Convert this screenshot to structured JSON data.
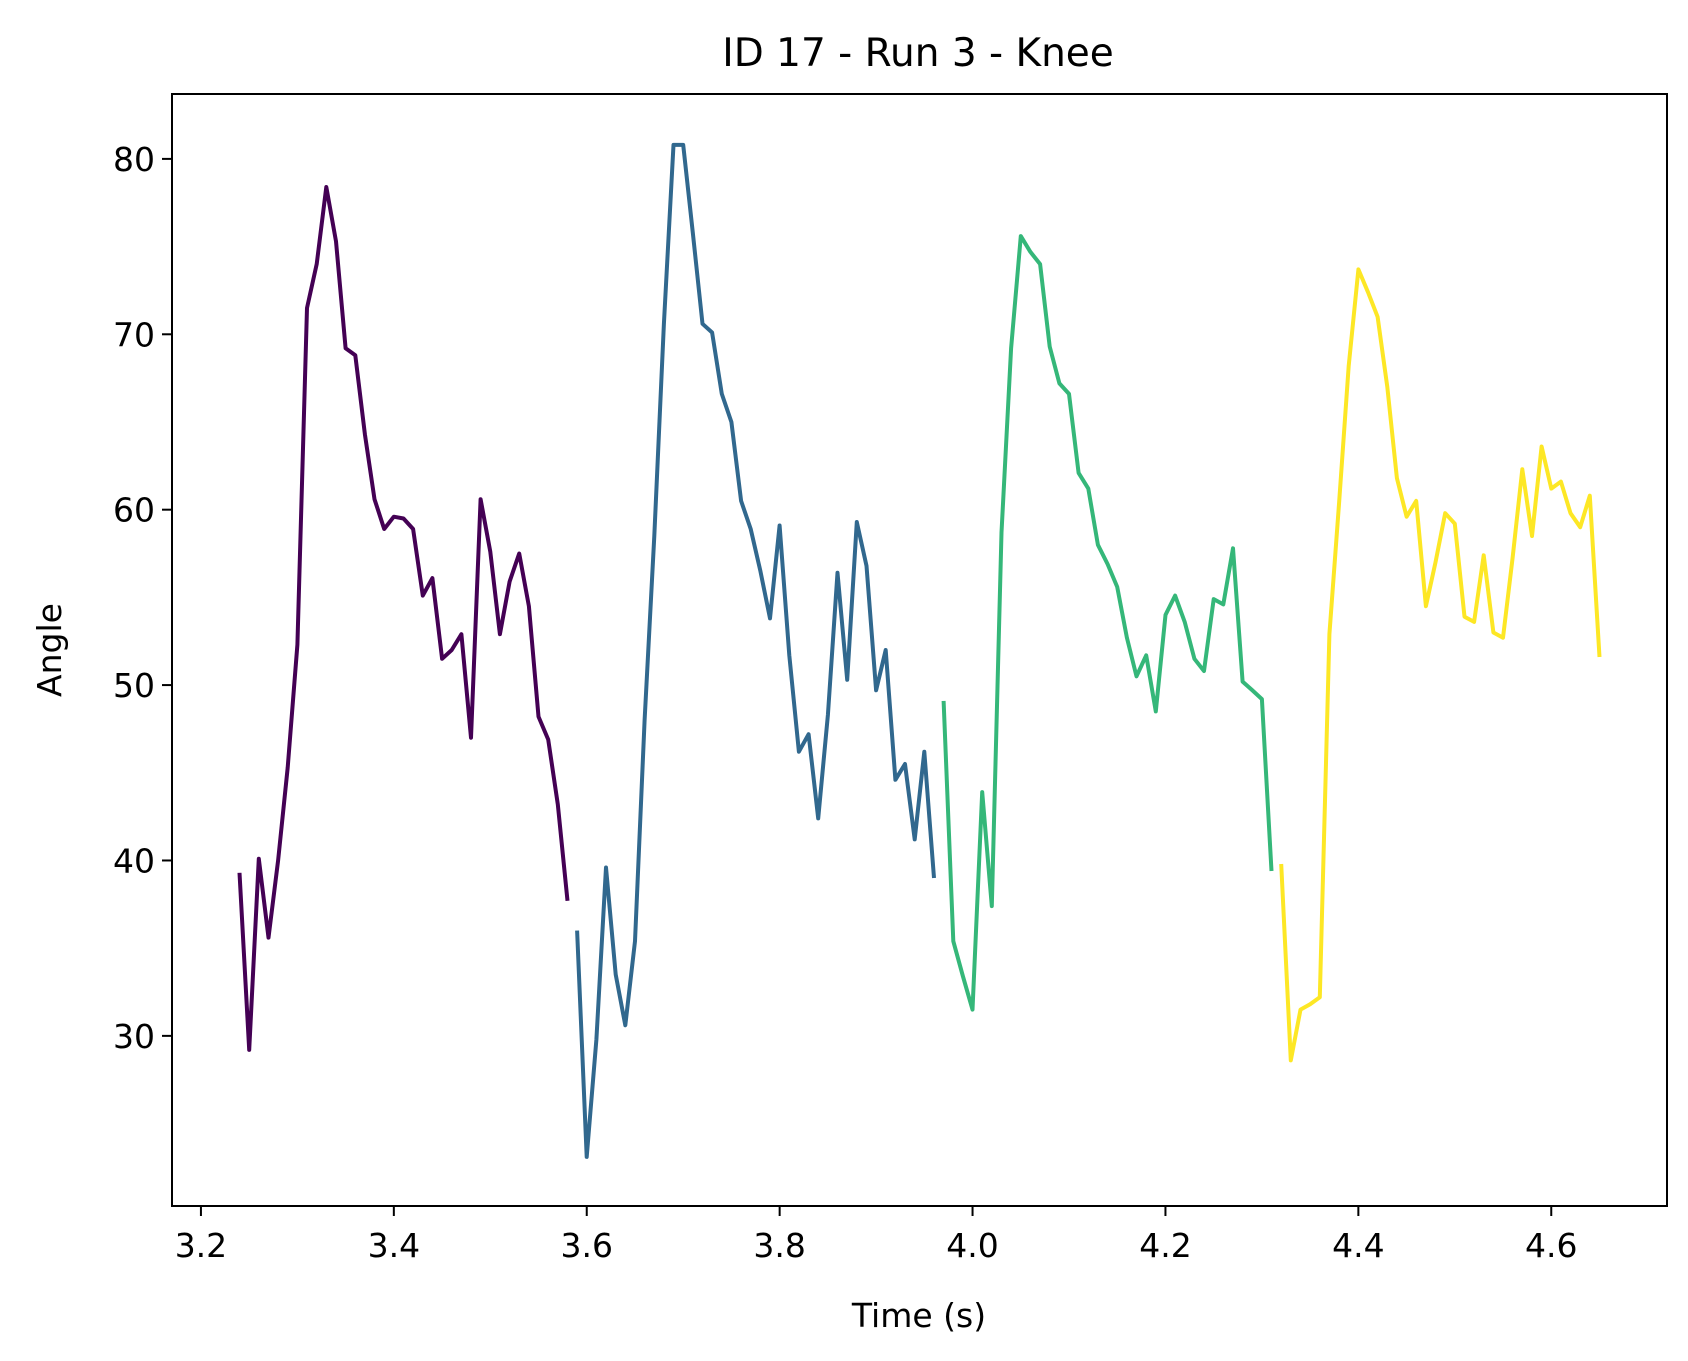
{
  "chart_data": {
    "type": "line",
    "title": "ID 17 - Run 3 - Knee",
    "xlabel": "Time (s)",
    "ylabel": "Angle",
    "xlim": [
      3.17,
      4.72
    ],
    "ylim": [
      20.3,
      83.7
    ],
    "xticks": [
      3.2,
      3.4,
      3.6,
      3.8,
      4.0,
      4.2,
      4.4,
      4.6
    ],
    "xtick_labels": [
      "3.2",
      "3.4",
      "3.6",
      "3.8",
      "4.0",
      "4.2",
      "4.4",
      "4.6"
    ],
    "yticks": [
      30,
      40,
      50,
      60,
      70,
      80
    ],
    "ytick_labels": [
      "30",
      "40",
      "50",
      "60",
      "70",
      "80"
    ],
    "grid": false,
    "legend": "none",
    "series": [
      {
        "color": "#440154",
        "x": [
          3.24,
          3.25,
          3.26,
          3.27,
          3.28,
          3.29,
          3.3,
          3.31,
          3.32,
          3.33,
          3.34,
          3.35,
          3.36,
          3.37,
          3.38,
          3.39,
          3.4,
          3.41,
          3.42,
          3.43,
          3.44,
          3.45,
          3.46,
          3.47,
          3.48,
          3.49,
          3.5,
          3.51,
          3.52,
          3.53,
          3.54,
          3.55,
          3.56,
          3.57,
          3.58
        ],
        "y": [
          39.3,
          29.2,
          40.1,
          35.6,
          40.0,
          45.3,
          52.3,
          71.5,
          74.0,
          78.4,
          75.3,
          69.2,
          68.8,
          64.3,
          60.6,
          58.9,
          59.6,
          59.5,
          58.9,
          55.1,
          56.1,
          51.5,
          52.0,
          52.9,
          47.0,
          60.6,
          57.6,
          52.9,
          55.9,
          57.5,
          54.5,
          48.2,
          46.9,
          43.2,
          37.7
        ]
      },
      {
        "color": "#31688e",
        "x": [
          3.59,
          3.6,
          3.61,
          3.62,
          3.63,
          3.64,
          3.65,
          3.66,
          3.67,
          3.68,
          3.69,
          3.7,
          3.71,
          3.72,
          3.73,
          3.74,
          3.75,
          3.76,
          3.77,
          3.78,
          3.79,
          3.8,
          3.81,
          3.82,
          3.83,
          3.84,
          3.85,
          3.86,
          3.87,
          3.88,
          3.89,
          3.9,
          3.91,
          3.92,
          3.93,
          3.94,
          3.95,
          3.96
        ],
        "y": [
          36.0,
          23.1,
          29.8,
          39.6,
          33.5,
          30.6,
          35.4,
          48.0,
          58.5,
          70.6,
          80.8,
          80.8,
          75.8,
          70.6,
          70.1,
          66.6,
          65.0,
          60.5,
          58.9,
          56.5,
          53.8,
          59.1,
          51.7,
          46.2,
          47.2,
          42.4,
          48.3,
          56.4,
          50.3,
          59.3,
          56.8,
          49.7,
          52.0,
          44.6,
          45.5,
          41.2,
          46.2,
          39.0
        ]
      },
      {
        "color": "#35b779",
        "x": [
          3.97,
          3.98,
          3.99,
          4.0,
          4.01,
          4.02,
          4.03,
          4.04,
          4.05,
          4.06,
          4.07,
          4.08,
          4.09,
          4.1,
          4.11,
          4.12,
          4.13,
          4.14,
          4.15,
          4.16,
          4.17,
          4.18,
          4.19,
          4.2,
          4.21,
          4.22,
          4.23,
          4.24,
          4.25,
          4.26,
          4.27,
          4.28,
          4.29,
          4.3,
          4.31
        ],
        "y": [
          49.1,
          35.4,
          33.4,
          31.5,
          43.9,
          37.4,
          58.7,
          69.2,
          75.6,
          74.7,
          74.0,
          69.3,
          67.2,
          66.6,
          62.1,
          61.2,
          58.0,
          56.9,
          55.6,
          52.7,
          50.5,
          51.7,
          48.5,
          54.0,
          55.1,
          53.6,
          51.5,
          50.8,
          54.9,
          54.6,
          57.8,
          50.2,
          49.7,
          49.2,
          39.4
        ]
      },
      {
        "color": "#fde725",
        "x": [
          4.32,
          4.33,
          4.34,
          4.35,
          4.36,
          4.37,
          4.38,
          4.39,
          4.4,
          4.41,
          4.42,
          4.43,
          4.44,
          4.45,
          4.46,
          4.47,
          4.48,
          4.49,
          4.5,
          4.51,
          4.52,
          4.53,
          4.54,
          4.55,
          4.56,
          4.57,
          4.58,
          4.59,
          4.6,
          4.61,
          4.62,
          4.63,
          4.64,
          4.65
        ],
        "y": [
          39.8,
          28.6,
          31.5,
          31.8,
          32.2,
          52.9,
          60.4,
          68.2,
          73.7,
          72.4,
          71.0,
          67.0,
          61.8,
          59.6,
          60.5,
          54.5,
          57.0,
          59.8,
          59.2,
          53.9,
          53.6,
          57.4,
          53.0,
          52.7,
          57.3,
          62.3,
          58.5,
          63.6,
          61.2,
          61.6,
          59.8,
          59.0,
          60.8,
          51.6
        ]
      }
    ]
  }
}
